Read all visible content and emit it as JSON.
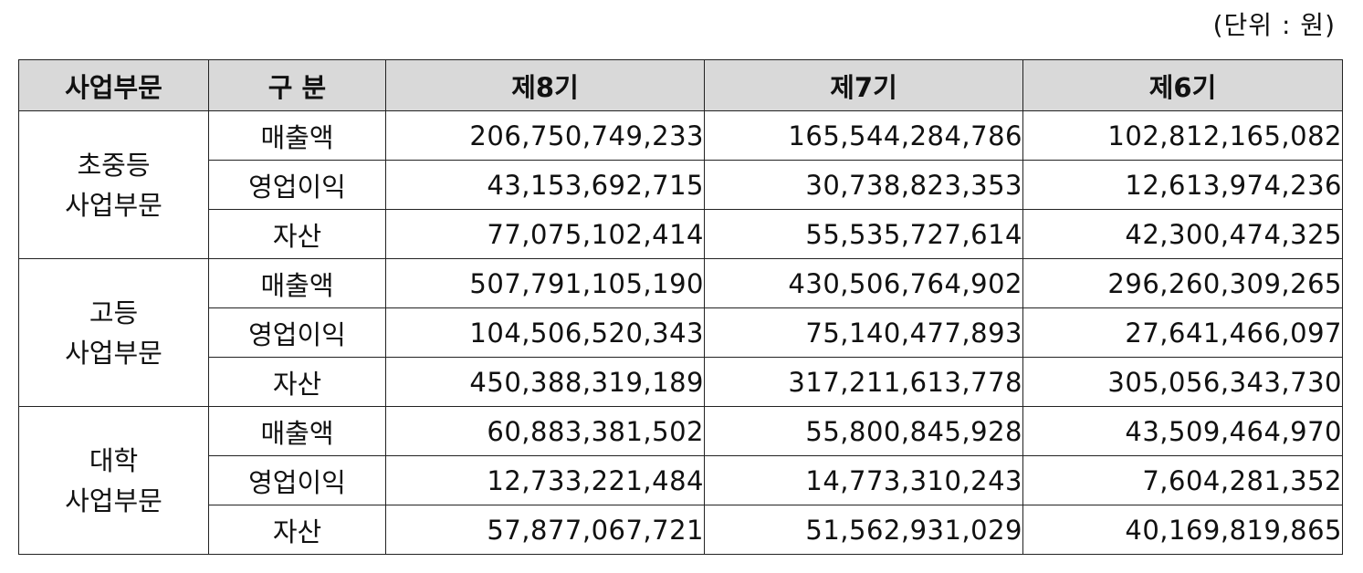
{
  "unit_label": "(단위 : 원)",
  "headers": {
    "segment": "사업부문",
    "category": "구 분",
    "p8": "제8기",
    "p7": "제7기",
    "p6": "제6기"
  },
  "segments": [
    {
      "name_line1": "초중등",
      "name_line2": "사업부문",
      "rows": [
        {
          "label": "매출액",
          "p8": "206,750,749,233",
          "p7": "165,544,284,786",
          "p6": "102,812,165,082"
        },
        {
          "label": "영업이익",
          "p8": "43,153,692,715",
          "p7": "30,738,823,353",
          "p6": "12,613,974,236"
        },
        {
          "label": "자산",
          "p8": "77,075,102,414",
          "p7": "55,535,727,614",
          "p6": "42,300,474,325"
        }
      ]
    },
    {
      "name_line1": "고등",
      "name_line2": "사업부문",
      "rows": [
        {
          "label": "매출액",
          "p8": "507,791,105,190",
          "p7": "430,506,764,902",
          "p6": "296,260,309,265"
        },
        {
          "label": "영업이익",
          "p8": "104,506,520,343",
          "p7": "75,140,477,893",
          "p6": "27,641,466,097"
        },
        {
          "label": "자산",
          "p8": "450,388,319,189",
          "p7": "317,211,613,778",
          "p6": "305,056,343,730"
        }
      ]
    },
    {
      "name_line1": "대학",
      "name_line2": "사업부문",
      "rows": [
        {
          "label": "매출액",
          "p8": "60,883,381,502",
          "p7": "55,800,845,928",
          "p6": "43,509,464,970"
        },
        {
          "label": "영업이익",
          "p8": "12,733,221,484",
          "p7": "14,773,310,243",
          "p6": "7,604,281,352"
        },
        {
          "label": "자산",
          "p8": "57,877,067,721",
          "p7": "51,562,931,029",
          "p6": "40,169,819,865"
        }
      ]
    }
  ]
}
